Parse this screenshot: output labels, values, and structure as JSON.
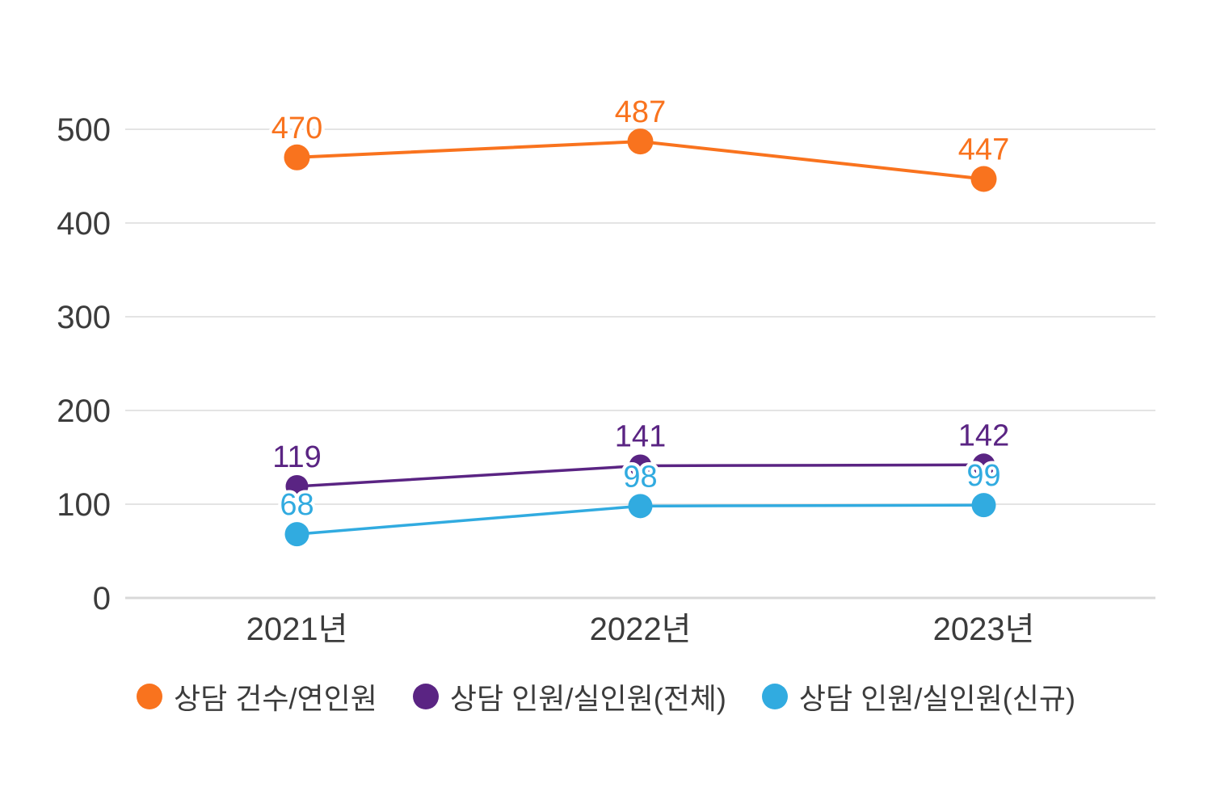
{
  "chart_data": {
    "type": "line",
    "categories": [
      "2021년",
      "2022년",
      "2023년"
    ],
    "series": [
      {
        "name": "상담 건수/연인원",
        "values": [
          470,
          487,
          447
        ],
        "color": "#F9731E"
      },
      {
        "name": "상담 인원/실인원(전체)",
        "values": [
          119,
          141,
          142
        ],
        "color": "#5A2483"
      },
      {
        "name": "상담 인원/실인원(신규)",
        "values": [
          68,
          98,
          99
        ],
        "color": "#31ABE0"
      }
    ],
    "yticks": [
      0,
      100,
      200,
      300,
      400,
      500
    ],
    "ylim": [
      0,
      500
    ],
    "grid": true,
    "data_labels": true,
    "legend_position": "bottom"
  },
  "colors": {
    "text": "#3C3C3C",
    "gridline": "#E4E4E4",
    "zero_line": "#D8D8D8",
    "background": "#FFFFFF",
    "label_halo": "#FFFFFF"
  }
}
